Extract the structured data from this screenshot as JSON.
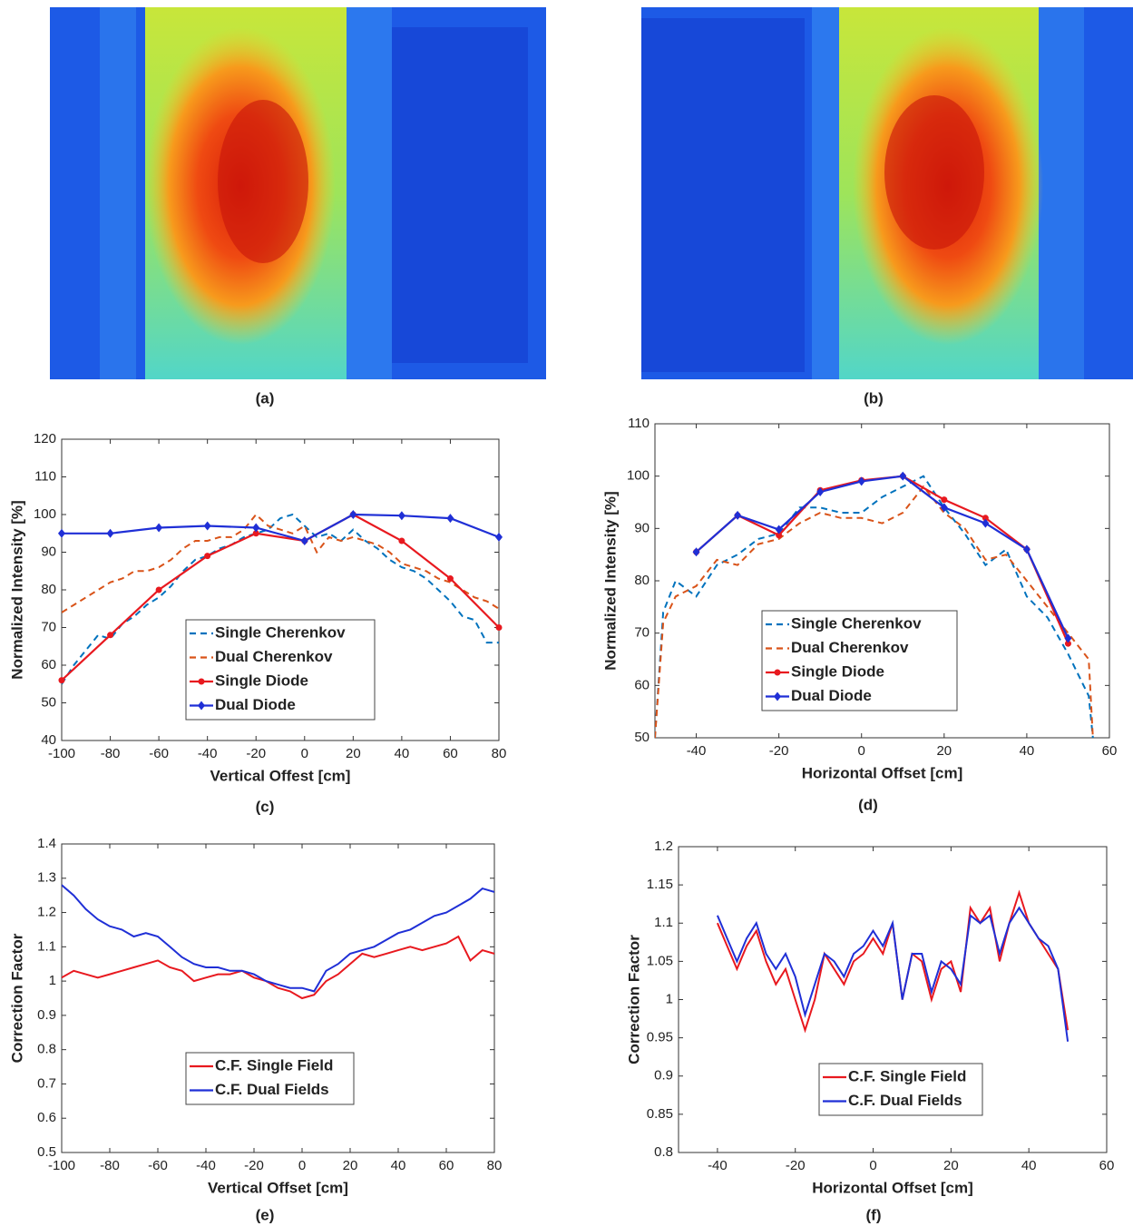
{
  "images": [
    {
      "caption": "(a)"
    },
    {
      "caption": "(b)"
    }
  ],
  "chart_data": [
    {
      "type": "line",
      "caption": "(c)",
      "xlabel": "Vertical Offest [cm]",
      "ylabel": "Normalized Intensity [%]",
      "xlim": [
        -100,
        80
      ],
      "xticks": [
        -100,
        -80,
        -60,
        -40,
        -20,
        0,
        20,
        40,
        60,
        80
      ],
      "ylim": [
        40,
        120
      ],
      "yticks": [
        40,
        50,
        60,
        70,
        80,
        90,
        100,
        110,
        120
      ],
      "series": [
        {
          "name": "Single Cherenkov",
          "color": "#0072bd",
          "dash": true,
          "x": [
            -100,
            -95,
            -90,
            -85,
            -80,
            -75,
            -70,
            -65,
            -60,
            -55,
            -50,
            -45,
            -40,
            -35,
            -30,
            -25,
            -20,
            -15,
            -10,
            -5,
            0,
            5,
            10,
            15,
            20,
            25,
            30,
            35,
            40,
            45,
            50,
            55,
            60,
            65,
            70,
            75,
            80
          ],
          "values": [
            55,
            60,
            64,
            68,
            67,
            71,
            73,
            76,
            78,
            81,
            85,
            88,
            89,
            91,
            92,
            94,
            95,
            96,
            99,
            100,
            97,
            94,
            95,
            93,
            96,
            93,
            91,
            88,
            86,
            85,
            83,
            80,
            77,
            73,
            72,
            66,
            66
          ]
        },
        {
          "name": "Dual Cherenkov",
          "color": "#d95319",
          "dash": true,
          "x": [
            -100,
            -95,
            -90,
            -85,
            -80,
            -75,
            -70,
            -65,
            -60,
            -55,
            -50,
            -45,
            -40,
            -35,
            -30,
            -25,
            -20,
            -15,
            -10,
            -5,
            0,
            5,
            10,
            15,
            20,
            25,
            30,
            35,
            40,
            45,
            50,
            55,
            60,
            65,
            70,
            75,
            80
          ],
          "values": [
            74,
            76,
            78,
            80,
            82,
            83,
            85,
            85,
            86,
            88,
            91,
            93,
            93,
            94,
            94,
            96,
            100,
            97,
            96,
            95,
            97,
            90,
            94,
            93,
            94,
            93,
            92,
            90,
            87,
            86,
            85,
            83,
            82,
            80,
            78,
            77,
            75
          ]
        },
        {
          "name": "Single Diode",
          "color": "#e8191f",
          "marker": "circle",
          "x": [
            -100,
            -80,
            -60,
            -40,
            -20,
            0,
            20,
            40,
            60,
            80
          ],
          "values": [
            56,
            68,
            80,
            89,
            95,
            93,
            100,
            93,
            83,
            70
          ]
        },
        {
          "name": "Dual Diode",
          "color": "#1f2fd6",
          "marker": "diamond",
          "x": [
            -100,
            -80,
            -60,
            -40,
            -20,
            0,
            20,
            40,
            60,
            80
          ],
          "values": [
            95,
            95,
            96.5,
            97,
            96.5,
            93,
            100,
            99.7,
            99,
            94
          ]
        }
      ]
    },
    {
      "type": "line",
      "caption": "(d)",
      "xlabel": "Horizontal Offset [cm]",
      "ylabel": "Normalized Intensity [%]",
      "xlim": [
        -50,
        60
      ],
      "xticks": [
        -40,
        -20,
        0,
        20,
        40,
        60
      ],
      "ylim": [
        50,
        110
      ],
      "yticks": [
        50,
        60,
        70,
        80,
        90,
        100,
        110
      ],
      "series": [
        {
          "name": "Single Cherenkov",
          "color": "#0072bd",
          "dash": true,
          "x": [
            -50,
            -48,
            -45,
            -40,
            -35,
            -30,
            -25,
            -20,
            -15,
            -10,
            -5,
            0,
            5,
            10,
            15,
            20,
            25,
            30,
            35,
            40,
            45,
            50,
            55,
            56
          ],
          "values": [
            50,
            74,
            80,
            77,
            83,
            85,
            88,
            89,
            94,
            94,
            93,
            93,
            96,
            98,
            100,
            94,
            89,
            83,
            86,
            77,
            73,
            66,
            58,
            50
          ]
        },
        {
          "name": "Dual Cherenkov",
          "color": "#d95319",
          "dash": true,
          "x": [
            -50,
            -48,
            -45,
            -40,
            -35,
            -30,
            -25,
            -20,
            -15,
            -10,
            -5,
            0,
            5,
            10,
            15,
            20,
            25,
            30,
            35,
            40,
            45,
            50,
            55,
            56
          ],
          "values": [
            50,
            72,
            77,
            79,
            84,
            83,
            87,
            88,
            91,
            93,
            92,
            92,
            91,
            93,
            98,
            93,
            90,
            84,
            85,
            80,
            75,
            70,
            65,
            50
          ]
        },
        {
          "name": "Single Diode",
          "color": "#e8191f",
          "marker": "circle",
          "x": [
            -40,
            -30,
            -20,
            -10,
            0,
            10,
            20,
            30,
            40,
            50
          ],
          "values": [
            85.5,
            92.5,
            88.7,
            97.3,
            99.2,
            100,
            95.5,
            92,
            86,
            68
          ]
        },
        {
          "name": "Dual Diode",
          "color": "#1f2fd6",
          "marker": "diamond",
          "x": [
            -40,
            -30,
            -20,
            -10,
            0,
            10,
            20,
            30,
            40,
            50
          ],
          "values": [
            85.5,
            92.5,
            89.8,
            97,
            99,
            100,
            94,
            91,
            86,
            69
          ]
        }
      ]
    },
    {
      "type": "line",
      "caption": "(e)",
      "xlabel": "Vertical Offset [cm]",
      "ylabel": "Correction Factor",
      "xlim": [
        -100,
        80
      ],
      "xticks": [
        -100,
        -80,
        -60,
        -40,
        -20,
        0,
        20,
        40,
        60,
        80
      ],
      "ylim": [
        0.5,
        1.4
      ],
      "yticks": [
        0.5,
        0.6,
        0.7,
        0.8,
        0.9,
        1,
        1.1,
        1.2,
        1.3,
        1.4
      ],
      "series": [
        {
          "name": "C.F. Single Field",
          "color": "#e8191f",
          "x": [
            -100,
            -95,
            -90,
            -85,
            -80,
            -75,
            -70,
            -65,
            -60,
            -55,
            -50,
            -45,
            -40,
            -35,
            -30,
            -25,
            -20,
            -15,
            -10,
            -5,
            0,
            5,
            10,
            15,
            20,
            25,
            30,
            35,
            40,
            45,
            50,
            55,
            60,
            65,
            70,
            75,
            80
          ],
          "values": [
            1.01,
            1.03,
            1.02,
            1.01,
            1.02,
            1.03,
            1.04,
            1.05,
            1.06,
            1.04,
            1.03,
            1.0,
            1.01,
            1.02,
            1.02,
            1.03,
            1.01,
            1.0,
            0.98,
            0.97,
            0.95,
            0.96,
            1.0,
            1.02,
            1.05,
            1.08,
            1.07,
            1.08,
            1.09,
            1.1,
            1.09,
            1.1,
            1.11,
            1.13,
            1.06,
            1.09,
            1.08
          ]
        },
        {
          "name": "C.F. Dual Fields",
          "color": "#1f2fd6",
          "x": [
            -100,
            -95,
            -90,
            -85,
            -80,
            -75,
            -70,
            -65,
            -60,
            -55,
            -50,
            -45,
            -40,
            -35,
            -30,
            -25,
            -20,
            -15,
            -10,
            -5,
            0,
            5,
            10,
            15,
            20,
            25,
            30,
            35,
            40,
            45,
            50,
            55,
            60,
            65,
            70,
            75,
            80
          ],
          "values": [
            1.28,
            1.25,
            1.21,
            1.18,
            1.16,
            1.15,
            1.13,
            1.14,
            1.13,
            1.1,
            1.07,
            1.05,
            1.04,
            1.04,
            1.03,
            1.03,
            1.02,
            1.0,
            0.99,
            0.98,
            0.98,
            0.97,
            1.03,
            1.05,
            1.08,
            1.09,
            1.1,
            1.12,
            1.14,
            1.15,
            1.17,
            1.19,
            1.2,
            1.22,
            1.24,
            1.27,
            1.26
          ]
        }
      ]
    },
    {
      "type": "line",
      "caption": "(f)",
      "xlabel": "Horizontal Offset [cm]",
      "ylabel": "Correction Factor",
      "xlim": [
        -50,
        60
      ],
      "xticks": [
        -40,
        -20,
        0,
        20,
        40,
        60
      ],
      "ylim": [
        0.8,
        1.2
      ],
      "yticks": [
        0.8,
        0.85,
        0.9,
        0.95,
        1,
        1.05,
        1.1,
        1.15,
        1.2
      ],
      "series": [
        {
          "name": "C.F. Single Field",
          "color": "#e8191f",
          "x": [
            -40,
            -37.5,
            -35,
            -32.5,
            -30,
            -27.5,
            -25,
            -22.5,
            -20,
            -17.5,
            -15,
            -12.5,
            -10,
            -7.5,
            -5,
            -2.5,
            0,
            2.5,
            5,
            7.5,
            10,
            12.5,
            15,
            17.5,
            20,
            22.5,
            25,
            27.5,
            30,
            32.5,
            35,
            37.5,
            40,
            42.5,
            45,
            47.5,
            50
          ],
          "values": [
            1.1,
            1.07,
            1.04,
            1.07,
            1.09,
            1.05,
            1.02,
            1.04,
            1.0,
            0.96,
            1.0,
            1.06,
            1.04,
            1.02,
            1.05,
            1.06,
            1.08,
            1.06,
            1.1,
            1.0,
            1.06,
            1.05,
            1.0,
            1.04,
            1.05,
            1.01,
            1.12,
            1.1,
            1.12,
            1.05,
            1.1,
            1.14,
            1.1,
            1.08,
            1.06,
            1.04,
            0.96
          ]
        },
        {
          "name": "C.F. Dual Fields",
          "color": "#1f2fd6",
          "x": [
            -40,
            -37.5,
            -35,
            -32.5,
            -30,
            -27.5,
            -25,
            -22.5,
            -20,
            -17.5,
            -15,
            -12.5,
            -10,
            -7.5,
            -5,
            -2.5,
            0,
            2.5,
            5,
            7.5,
            10,
            12.5,
            15,
            17.5,
            20,
            22.5,
            25,
            27.5,
            30,
            32.5,
            35,
            37.5,
            40,
            42.5,
            45,
            47.5,
            50
          ],
          "values": [
            1.11,
            1.08,
            1.05,
            1.08,
            1.1,
            1.06,
            1.04,
            1.06,
            1.03,
            0.98,
            1.02,
            1.06,
            1.05,
            1.03,
            1.06,
            1.07,
            1.09,
            1.07,
            1.1,
            1.0,
            1.06,
            1.06,
            1.01,
            1.05,
            1.04,
            1.02,
            1.11,
            1.1,
            1.11,
            1.06,
            1.1,
            1.12,
            1.1,
            1.08,
            1.07,
            1.04,
            0.945
          ]
        }
      ]
    }
  ]
}
